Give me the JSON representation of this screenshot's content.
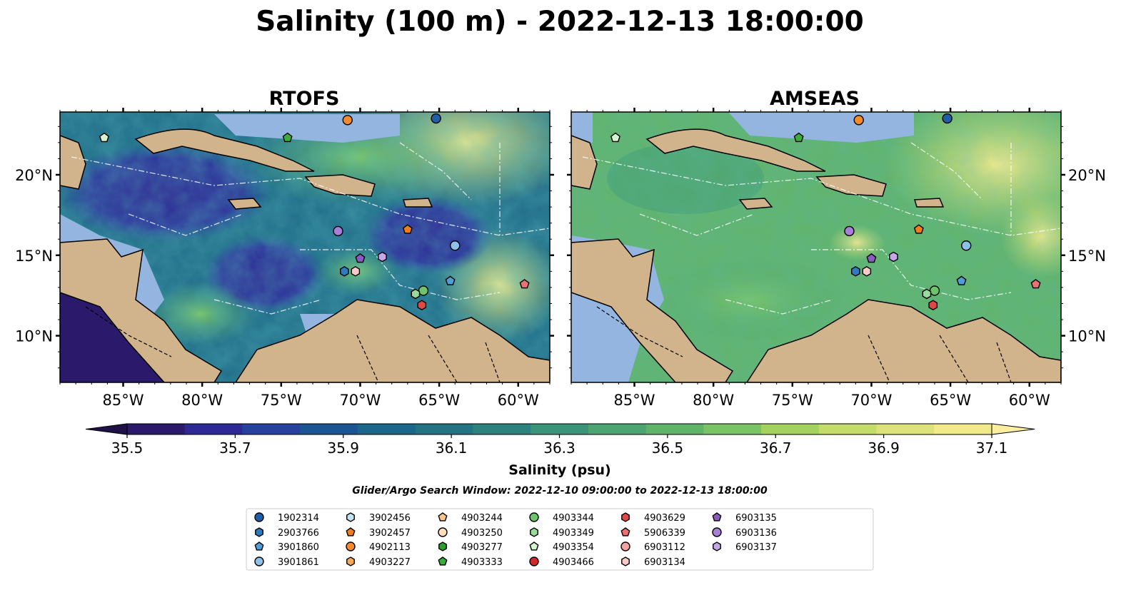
{
  "figure": {
    "title": "Salinity (100 m) - 2022-12-13 18:00:00",
    "search_window": "Glider/Argo Search Window: 2022-12-10 09:00:00 to 2022-12-13 18:00:00"
  },
  "chart_data": {
    "type": "heatmap",
    "panels": [
      {
        "title": "RTOFS",
        "lon_range": [
          -89,
          -58
        ],
        "lat_range": [
          7.1,
          23.9
        ]
      },
      {
        "title": "AMSEAS",
        "lon_range": [
          -89,
          -58
        ],
        "lat_range": [
          7.1,
          23.9
        ]
      }
    ],
    "x_ticks": [
      {
        "value": -85,
        "label": "85°W"
      },
      {
        "value": -80,
        "label": "80°W"
      },
      {
        "value": -75,
        "label": "75°W"
      },
      {
        "value": -70,
        "label": "70°W"
      },
      {
        "value": -65,
        "label": "65°W"
      },
      {
        "value": -60,
        "label": "60°W"
      }
    ],
    "y_ticks": [
      {
        "value": 10,
        "label": "10°N"
      },
      {
        "value": 15,
        "label": "15°N"
      },
      {
        "value": 20,
        "label": "20°N"
      }
    ],
    "colorbar": {
      "label": "Salinity (psu)",
      "range": [
        35.5,
        37.1
      ],
      "step": 0.1,
      "extend": "both",
      "tick_labels": [
        "35.5",
        "35.7",
        "35.9",
        "36.1",
        "36.3",
        "36.5",
        "36.7",
        "36.9",
        "37.1"
      ],
      "colors": [
        "#2b1a6b",
        "#2d2a96",
        "#27419e",
        "#1c5594",
        "#1b6689",
        "#237383",
        "#2e827e",
        "#3b9379",
        "#4ca571",
        "#60b46a",
        "#7bc465",
        "#a3d25f",
        "#c4dc6a",
        "#ddE27a",
        "#f2e988"
      ]
    },
    "colors": {
      "land": "#d2b48c",
      "shelf": "#93b5e0"
    },
    "floats": [
      {
        "id": "1902314",
        "lon": -65.2,
        "lat": 23.5,
        "marker": "circle",
        "color": "#1f5fa8"
      },
      {
        "id": "2903766",
        "lon": -71.0,
        "lat": 14.0,
        "marker": "hexagon",
        "color": "#2f7bbd"
      },
      {
        "id": "3901860",
        "lon": -64.3,
        "lat": 13.4,
        "marker": "pentagon",
        "color": "#4e9fd8"
      },
      {
        "id": "3901861",
        "lon": -64.0,
        "lat": 15.6,
        "marker": "circle",
        "color": "#8ec1ea"
      },
      {
        "id": "3902456",
        "lon": null,
        "lat": null,
        "marker": "hexagon",
        "color": "#c6e2f7"
      },
      {
        "id": "3902457",
        "lon": -67.0,
        "lat": 16.6,
        "marker": "pentagon",
        "color": "#f07d1a"
      },
      {
        "id": "4902113",
        "lon": -70.8,
        "lat": 23.4,
        "marker": "circle",
        "color": "#f58a2a"
      },
      {
        "id": "4903227",
        "lon": null,
        "lat": null,
        "marker": "hexagon",
        "color": "#f7a85a"
      },
      {
        "id": "4903244",
        "lon": null,
        "lat": null,
        "marker": "pentagon",
        "color": "#fbc58a"
      },
      {
        "id": "4903250",
        "lon": null,
        "lat": null,
        "marker": "circle",
        "color": "#fddfbe"
      },
      {
        "id": "4903277",
        "lon": null,
        "lat": null,
        "marker": "hexagon",
        "color": "#2a9d2a"
      },
      {
        "id": "4903333",
        "lon": -74.6,
        "lat": 22.3,
        "marker": "pentagon",
        "color": "#3aae3a"
      },
      {
        "id": "4903344",
        "lon": -66.0,
        "lat": 12.8,
        "marker": "circle",
        "color": "#6cc56c"
      },
      {
        "id": "4903349",
        "lon": -66.5,
        "lat": 12.6,
        "marker": "hexagon",
        "color": "#98dc98"
      },
      {
        "id": "4903354",
        "lon": -86.2,
        "lat": 22.3,
        "marker": "pentagon",
        "color": "#d4f5cf"
      },
      {
        "id": "4903466",
        "lon": null,
        "lat": null,
        "marker": "circle",
        "color": "#d62728"
      },
      {
        "id": "4903629",
        "lon": -66.1,
        "lat": 11.9,
        "marker": "hexagon",
        "color": "#e04848"
      },
      {
        "id": "5906339",
        "lon": -59.6,
        "lat": 13.2,
        "marker": "pentagon",
        "color": "#ea7272"
      },
      {
        "id": "6903112",
        "lon": null,
        "lat": null,
        "marker": "circle",
        "color": "#f2a3a3"
      },
      {
        "id": "6903134",
        "lon": -70.3,
        "lat": 14.0,
        "marker": "hexagon",
        "color": "#f8caca"
      },
      {
        "id": "6903135",
        "lon": -70.0,
        "lat": 14.8,
        "marker": "pentagon",
        "color": "#8b5cbf"
      },
      {
        "id": "6903136",
        "lon": -71.4,
        "lat": 16.5,
        "marker": "circle",
        "color": "#a77fd4"
      },
      {
        "id": "6903137",
        "lon": -68.6,
        "lat": 14.9,
        "marker": "hexagon",
        "color": "#c6a6e6"
      }
    ]
  }
}
